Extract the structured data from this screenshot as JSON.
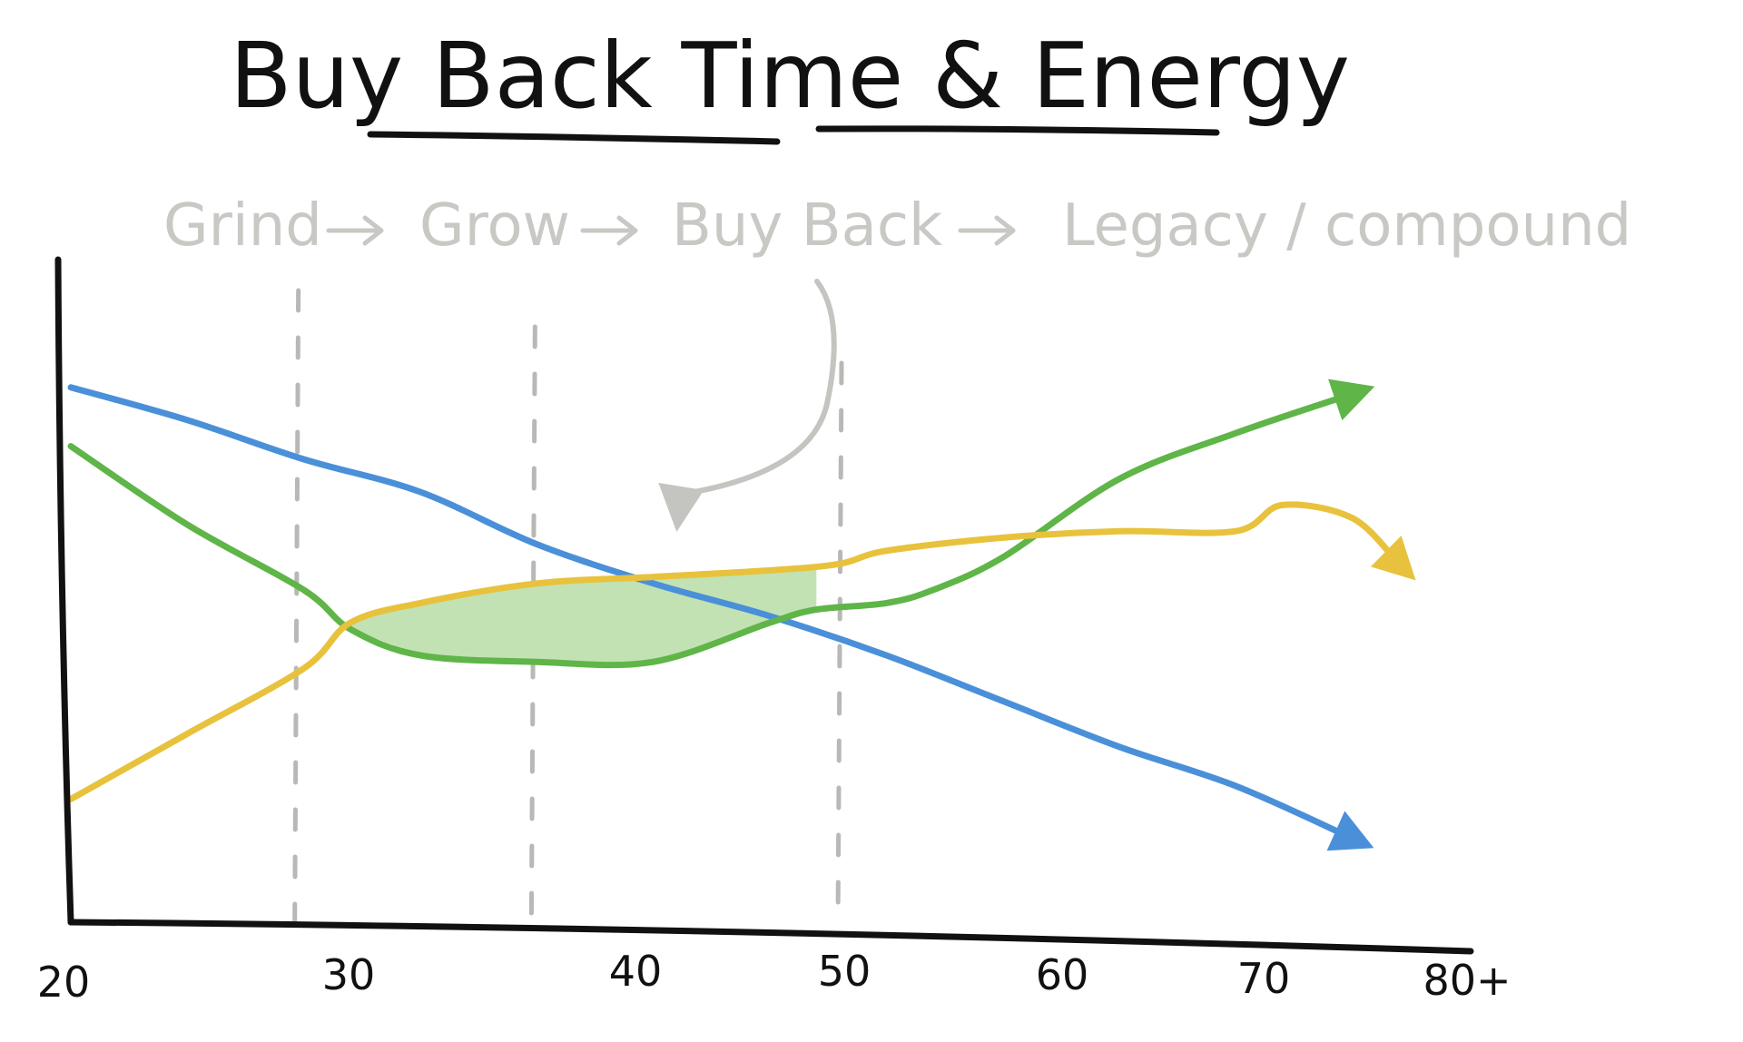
{
  "chart_data": {
    "type": "line",
    "title": "Buy Back Time & Energy",
    "phases": [
      "Grind",
      "Grow",
      "Buy Back",
      "Legacy / compound"
    ],
    "x_ticks": [
      "20",
      "30",
      "40",
      "50",
      "60",
      "70",
      "80+"
    ],
    "xlim": [
      20,
      80
    ],
    "ylim": [
      0,
      100
    ],
    "phase_boundaries_x": [
      30,
      40,
      53
    ],
    "grid": false,
    "legend": "none",
    "series": [
      {
        "color": "#4a90d9",
        "x": [
          20,
          25,
          30,
          35,
          40,
          45,
          50,
          55,
          60,
          65,
          70,
          75
        ],
        "y": [
          81,
          76,
          70,
          65,
          57,
          51,
          46,
          40,
          33,
          26,
          20,
          12
        ]
      },
      {
        "color": "#5fb548",
        "x": [
          20,
          25,
          30,
          32,
          35,
          40,
          45,
          50,
          52,
          55,
          57,
          60,
          65,
          70,
          75
        ],
        "y": [
          72,
          60,
          50,
          44,
          40,
          39,
          39,
          45,
          47,
          48,
          50,
          55,
          67,
          74,
          80
        ]
      },
      {
        "color": "#e8c23c",
        "x": [
          20,
          25,
          30,
          32,
          35,
          40,
          45,
          50,
          53,
          55,
          60,
          65,
          70,
          72,
          75,
          77
        ],
        "y": [
          18,
          28,
          38,
          45,
          48,
          51,
          52,
          53,
          54,
          56,
          58,
          59,
          59,
          63,
          61,
          54
        ]
      }
    ],
    "shaded_region": {
      "color": "#c2e2b4",
      "x_range": [
        32,
        52
      ]
    },
    "annotation": {
      "text": "Buy Back",
      "target_x": 46,
      "target_y": 55
    }
  }
}
